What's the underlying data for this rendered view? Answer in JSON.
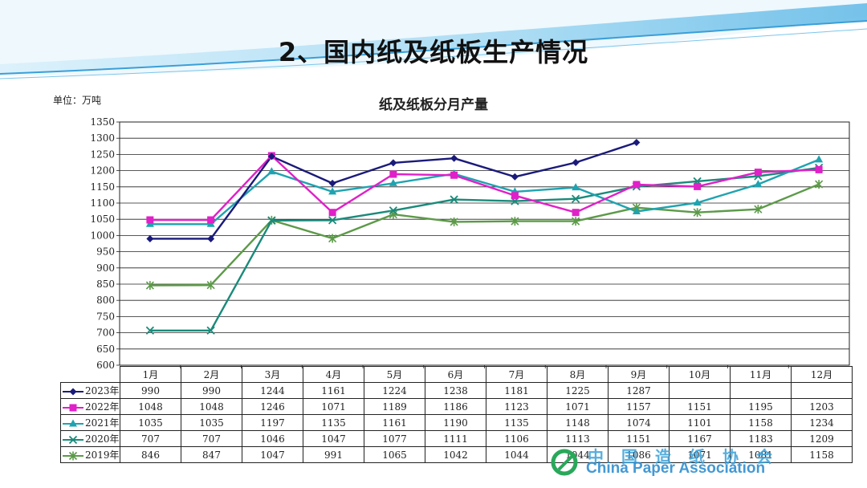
{
  "page": {
    "title": "2、国内纸及纸板生产情况",
    "unit_label": "单位：万吨"
  },
  "watermark": {
    "cn": "中国造纸协会",
    "en": "China Paper Association"
  },
  "chart_data": {
    "type": "line",
    "title": "纸及纸板分月产量",
    "ylabel": "",
    "xlabel": "",
    "ylim": [
      600,
      1350
    ],
    "yticks": [
      600,
      650,
      700,
      750,
      800,
      850,
      900,
      950,
      1000,
      1050,
      1100,
      1150,
      1200,
      1250,
      1300,
      1350
    ],
    "grid": true,
    "categories": [
      "1月",
      "2月",
      "3月",
      "4月",
      "5月",
      "6月",
      "7月",
      "8月",
      "9月",
      "10月",
      "11月",
      "12月"
    ],
    "series": [
      {
        "name": "2023年",
        "color": "#1a1a7a",
        "marker": "diamond",
        "values": [
          990,
          990,
          1244,
          1161,
          1224,
          1238,
          1181,
          1225,
          1287,
          null,
          null,
          null
        ]
      },
      {
        "name": "2022年",
        "color": "#e020c8",
        "marker": "square",
        "values": [
          1048,
          1048,
          1246,
          1071,
          1189,
          1186,
          1123,
          1071,
          1157,
          1151,
          1195,
          1203
        ]
      },
      {
        "name": "2021年",
        "color": "#1fa3b0",
        "marker": "triangle",
        "values": [
          1035,
          1035,
          1197,
          1135,
          1161,
          1190,
          1135,
          1148,
          1074,
          1101,
          1158,
          1234
        ]
      },
      {
        "name": "2020年",
        "color": "#1a8a7a",
        "marker": "x",
        "values": [
          707,
          707,
          1046,
          1047,
          1077,
          1111,
          1106,
          1113,
          1151,
          1167,
          1183,
          1209
        ]
      },
      {
        "name": "2019年",
        "color": "#5c9a48",
        "marker": "star",
        "values": [
          846,
          847,
          1047,
          991,
          1065,
          1042,
          1044,
          1044,
          1086,
          1071,
          1081,
          1158
        ]
      }
    ]
  }
}
